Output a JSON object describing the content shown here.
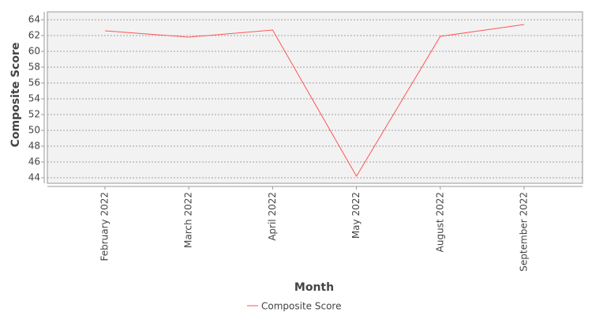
{
  "chart_data": {
    "type": "line",
    "x_label": "Month",
    "y_label": "Composite Score",
    "categories": [
      "February 2022",
      "March 2022",
      "April 2022",
      "May 2022",
      "August 2022",
      "September 2022"
    ],
    "series": [
      {
        "name": "Composite Score",
        "color": "#ff5555",
        "values": [
          62.6,
          61.8,
          62.7,
          44.2,
          61.9,
          63.4
        ]
      }
    ],
    "ylim": [
      43.3,
      65
    ],
    "yticks": [
      44,
      46,
      48,
      50,
      52,
      54,
      56,
      58,
      60,
      62,
      64
    ],
    "grid": true,
    "legend": "bottom"
  }
}
